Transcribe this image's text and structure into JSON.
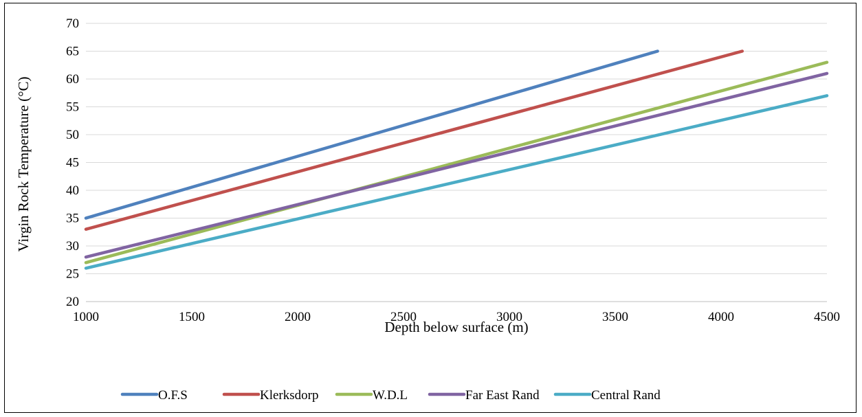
{
  "chart_data": {
    "type": "line",
    "title": "",
    "xlabel": "Depth below surface (m)",
    "ylabel": "Virgin Rock Temperature (°C)",
    "xlim": [
      1000,
      4500
    ],
    "ylim": [
      20,
      70
    ],
    "x_ticks": [
      1000,
      1500,
      2000,
      2500,
      3000,
      3500,
      4000,
      4500
    ],
    "y_ticks": [
      20,
      25,
      30,
      35,
      40,
      45,
      50,
      55,
      60,
      65,
      70
    ],
    "grid": "horizontal",
    "legend_position": "bottom",
    "series": [
      {
        "name": "O.F.S",
        "color": "#4F81BD",
        "x": [
          1000,
          3700
        ],
        "y": [
          35,
          65
        ]
      },
      {
        "name": "Klerksdorp",
        "color": "#C0504D",
        "x": [
          1000,
          4100
        ],
        "y": [
          33,
          65
        ]
      },
      {
        "name": "W.D.L",
        "color": "#9BBB59",
        "x": [
          1000,
          4500
        ],
        "y": [
          27,
          63
        ]
      },
      {
        "name": "Far East Rand",
        "color": "#8064A2",
        "x": [
          1000,
          4500
        ],
        "y": [
          28,
          61
        ]
      },
      {
        "name": "Central Rand",
        "color": "#4BACC6",
        "x": [
          1000,
          4500
        ],
        "y": [
          26,
          57
        ]
      }
    ]
  }
}
